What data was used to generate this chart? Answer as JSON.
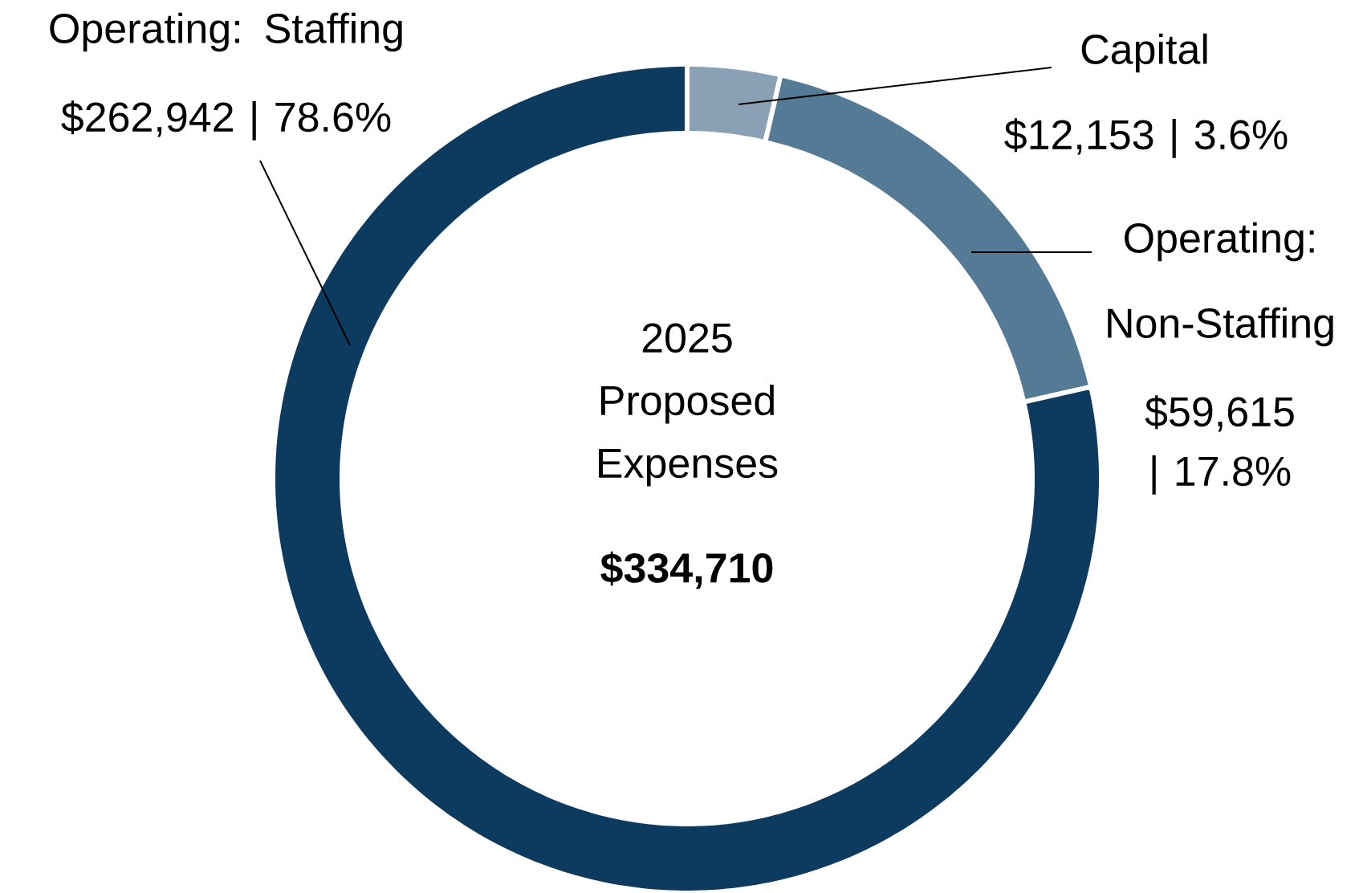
{
  "chart_data": {
    "type": "donut",
    "title": "2025 Proposed Expenses",
    "categories": [
      "Capital",
      "Operating: Non-Staffing",
      "Operating: Staffing"
    ],
    "values": [
      12153,
      59615,
      262942
    ],
    "value_labels": [
      "$12,153 | 3.6%",
      "$59,615 | 17.8%",
      "$262,942 | 78.6%"
    ],
    "colors": [
      "#8aa0b4",
      "#557a96",
      "#0d3a5f"
    ],
    "annotations": [
      "$334,710"
    ]
  }
}
